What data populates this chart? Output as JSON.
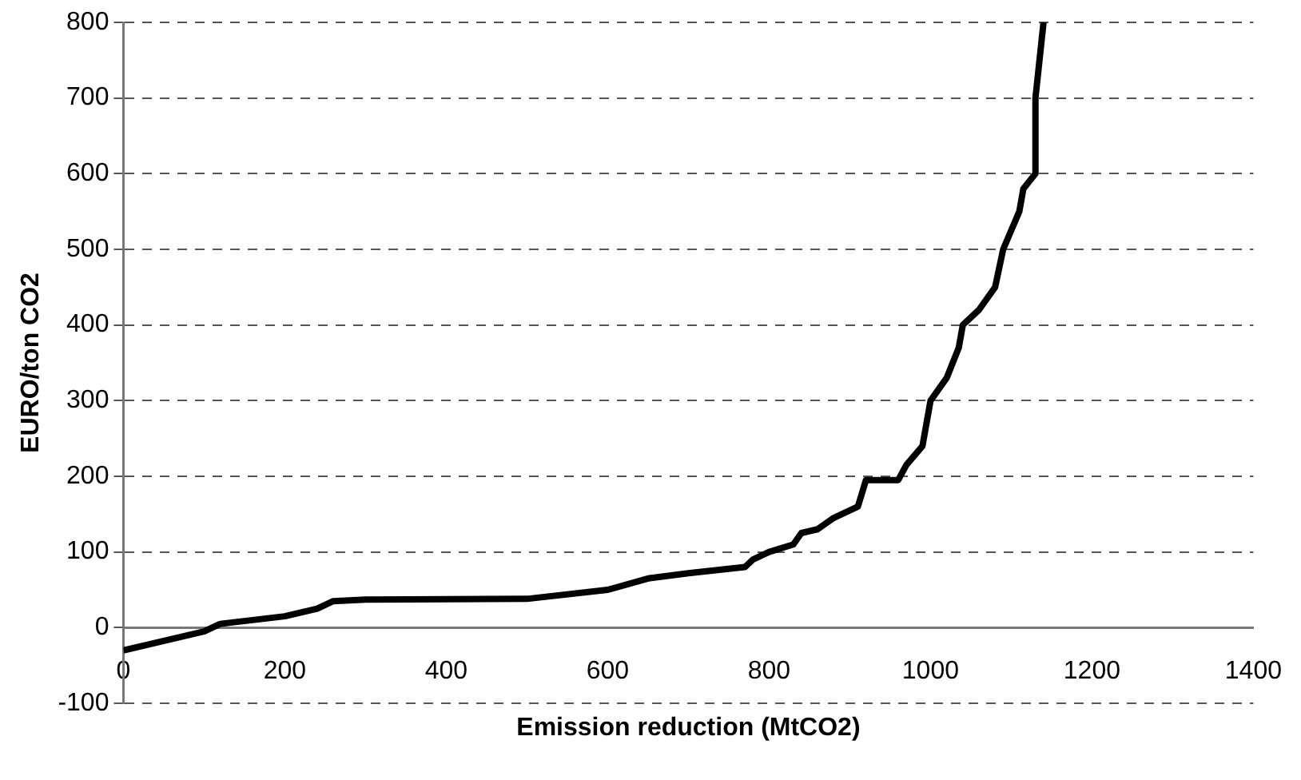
{
  "chart_data": {
    "type": "line",
    "xlabel": "Emission reduction (MtCO2)",
    "ylabel": "EURO/ton CO2",
    "xlim": [
      0,
      1400
    ],
    "xticks": [
      0,
      200,
      400,
      600,
      800,
      1000,
      1200,
      1400
    ],
    "ylim": [
      -100,
      800
    ],
    "yticks": [
      -100,
      0,
      100,
      200,
      300,
      400,
      500,
      600,
      700,
      800
    ],
    "grid": "y",
    "legend": false,
    "marker": "none",
    "line_style": "solid",
    "series": [
      {
        "color": "#000000",
        "x": [
          0,
          100,
          120,
          200,
          240,
          260,
          300,
          500,
          600,
          650,
          700,
          770,
          780,
          800,
          830,
          840,
          860,
          880,
          910,
          920,
          960,
          970,
          990,
          1000,
          1020,
          1035,
          1040,
          1060,
          1080,
          1090,
          1110,
          1115,
          1130,
          1130,
          1140
        ],
        "values": [
          -30,
          -5,
          5,
          15,
          25,
          35,
          37,
          38,
          50,
          65,
          72,
          80,
          90,
          100,
          110,
          125,
          130,
          145,
          160,
          195,
          195,
          215,
          240,
          300,
          330,
          370,
          400,
          420,
          450,
          500,
          550,
          580,
          600,
          700,
          800
        ]
      }
    ]
  }
}
